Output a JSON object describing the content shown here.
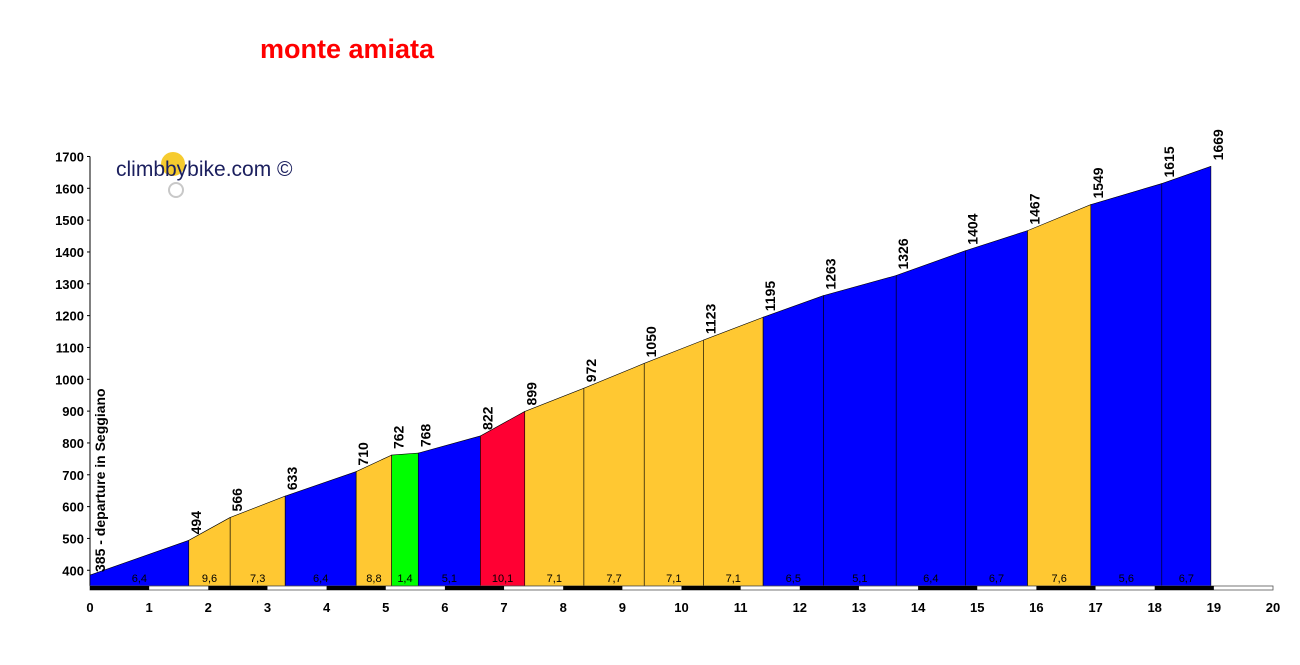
{
  "title": "monte amiata",
  "watermark": "climbbybike.com ©",
  "chart_data": {
    "type": "area",
    "title": "monte amiata",
    "start_label": "385 - departure in Seggiano",
    "xlim": [
      0,
      20
    ],
    "ylim": [
      360,
      1700
    ],
    "x_ticks": [
      0,
      1,
      2,
      3,
      4,
      5,
      6,
      7,
      8,
      9,
      10,
      11,
      12,
      13,
      14,
      15,
      16,
      17,
      18,
      19,
      20
    ],
    "y_ticks": [
      400,
      500,
      600,
      700,
      800,
      900,
      1000,
      1100,
      1200,
      1300,
      1400,
      1500,
      1600,
      1700
    ],
    "grid": false,
    "colors": {
      "easy": "#0000ff",
      "moderate": "#ffc832",
      "flat": "#00ff00",
      "steep": "#ff0033"
    },
    "points": [
      {
        "x": 0,
        "y": 385,
        "label": ""
      },
      {
        "x": 1.67,
        "y": 494,
        "label": "494"
      },
      {
        "x": 2.37,
        "y": 566,
        "label": "566"
      },
      {
        "x": 3.3,
        "y": 633,
        "label": "633"
      },
      {
        "x": 4.5,
        "y": 710,
        "label": "710"
      },
      {
        "x": 5.1,
        "y": 762,
        "label": "762"
      },
      {
        "x": 5.55,
        "y": 768,
        "label": "768"
      },
      {
        "x": 6.6,
        "y": 822,
        "label": "822"
      },
      {
        "x": 7.35,
        "y": 899,
        "label": "899"
      },
      {
        "x": 8.35,
        "y": 972,
        "label": "972"
      },
      {
        "x": 9.37,
        "y": 1050,
        "label": "1050"
      },
      {
        "x": 10.37,
        "y": 1123,
        "label": "1123"
      },
      {
        "x": 11.38,
        "y": 1195,
        "label": "1195"
      },
      {
        "x": 12.4,
        "y": 1263,
        "label": "1263"
      },
      {
        "x": 13.63,
        "y": 1326,
        "label": "1326"
      },
      {
        "x": 14.8,
        "y": 1404,
        "label": "1404"
      },
      {
        "x": 15.85,
        "y": 1467,
        "label": "1467"
      },
      {
        "x": 16.92,
        "y": 1549,
        "label": "1549"
      },
      {
        "x": 18.12,
        "y": 1615,
        "label": "1615"
      },
      {
        "x": 18.95,
        "y": 1669,
        "label": "1669"
      }
    ],
    "segments": [
      {
        "gradient": "6,4",
        "category": "easy"
      },
      {
        "gradient": "9,6",
        "category": "moderate"
      },
      {
        "gradient": "7,3",
        "category": "moderate"
      },
      {
        "gradient": "6,4",
        "category": "easy"
      },
      {
        "gradient": "8,8",
        "category": "moderate"
      },
      {
        "gradient": "1,4",
        "category": "flat"
      },
      {
        "gradient": "5,1",
        "category": "easy"
      },
      {
        "gradient": "10,1",
        "category": "steep"
      },
      {
        "gradient": "7,1",
        "category": "moderate"
      },
      {
        "gradient": "7,7",
        "category": "moderate"
      },
      {
        "gradient": "7,1",
        "category": "moderate"
      },
      {
        "gradient": "7,1",
        "category": "moderate"
      },
      {
        "gradient": "6,5",
        "category": "easy"
      },
      {
        "gradient": "5,1",
        "category": "easy"
      },
      {
        "gradient": "6,4",
        "category": "easy"
      },
      {
        "gradient": "6,7",
        "category": "easy"
      },
      {
        "gradient": "7,6",
        "category": "moderate"
      },
      {
        "gradient": "5,6",
        "category": "easy"
      },
      {
        "gradient": "6,7",
        "category": "easy"
      }
    ]
  }
}
